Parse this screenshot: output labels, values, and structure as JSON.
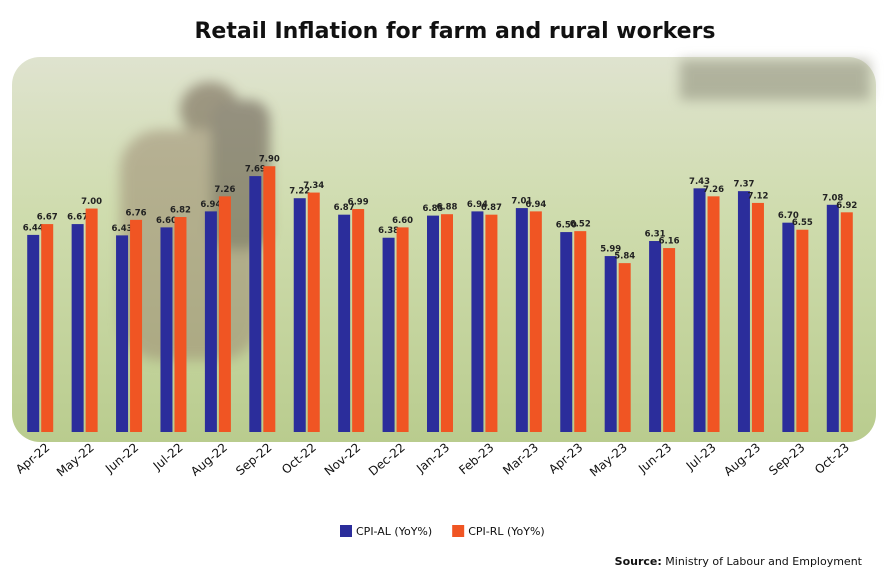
{
  "chart_data": {
    "type": "bar",
    "title": "Retail Inflation for farm and rural workers",
    "categories": [
      "Apr-22",
      "May-22",
      "Jun-22",
      "Jul-22",
      "Aug-22",
      "Sep-22",
      "Oct-22",
      "Nov-22",
      "Dec-22",
      "Jan-23",
      "Feb-23",
      "Mar-23",
      "Apr-23",
      "May-23",
      "Jun-23",
      "Jul-23",
      "Aug-23",
      "Sep-23",
      "Oct-23"
    ],
    "series": [
      {
        "name": "CPI-AL (YoY%)",
        "color": "#2b2d9b",
        "values": [
          6.44,
          6.67,
          6.43,
          6.6,
          6.94,
          7.69,
          7.22,
          6.87,
          6.38,
          6.85,
          6.94,
          7.01,
          6.5,
          5.99,
          6.31,
          7.43,
          7.37,
          6.7,
          7.08
        ],
        "value_labels": [
          "6.44",
          "6.67",
          "6.43",
          "6.60",
          "6.94",
          "7.69",
          "7.22",
          "6.87",
          "6.38",
          "6.85",
          "6.94",
          "7.01",
          "6.50",
          "5.99",
          "6.31",
          "7.43",
          "7.37",
          "6.70",
          "7.08"
        ]
      },
      {
        "name": "CPI-RL (YoY%)",
        "color": "#f05523",
        "values": [
          6.67,
          7.0,
          6.76,
          6.82,
          7.26,
          7.9,
          7.34,
          6.99,
          6.6,
          6.88,
          6.87,
          6.94,
          6.52,
          5.84,
          6.16,
          7.26,
          7.12,
          6.55,
          6.92
        ],
        "value_labels": [
          "6.67",
          "7.00",
          "6.76",
          "6.82",
          "7.26",
          "7.90",
          "7.34",
          "6.99",
          "6.60",
          "6.88",
          "6.87",
          "6.94",
          "6.52",
          "5.84",
          "6.16",
          "7.26",
          "7.12",
          "6.55",
          "6.92"
        ]
      }
    ],
    "ylim": [
      2.25,
      8.5
    ],
    "source_label": "Source:",
    "source": "Ministry of Labour and Employment"
  }
}
